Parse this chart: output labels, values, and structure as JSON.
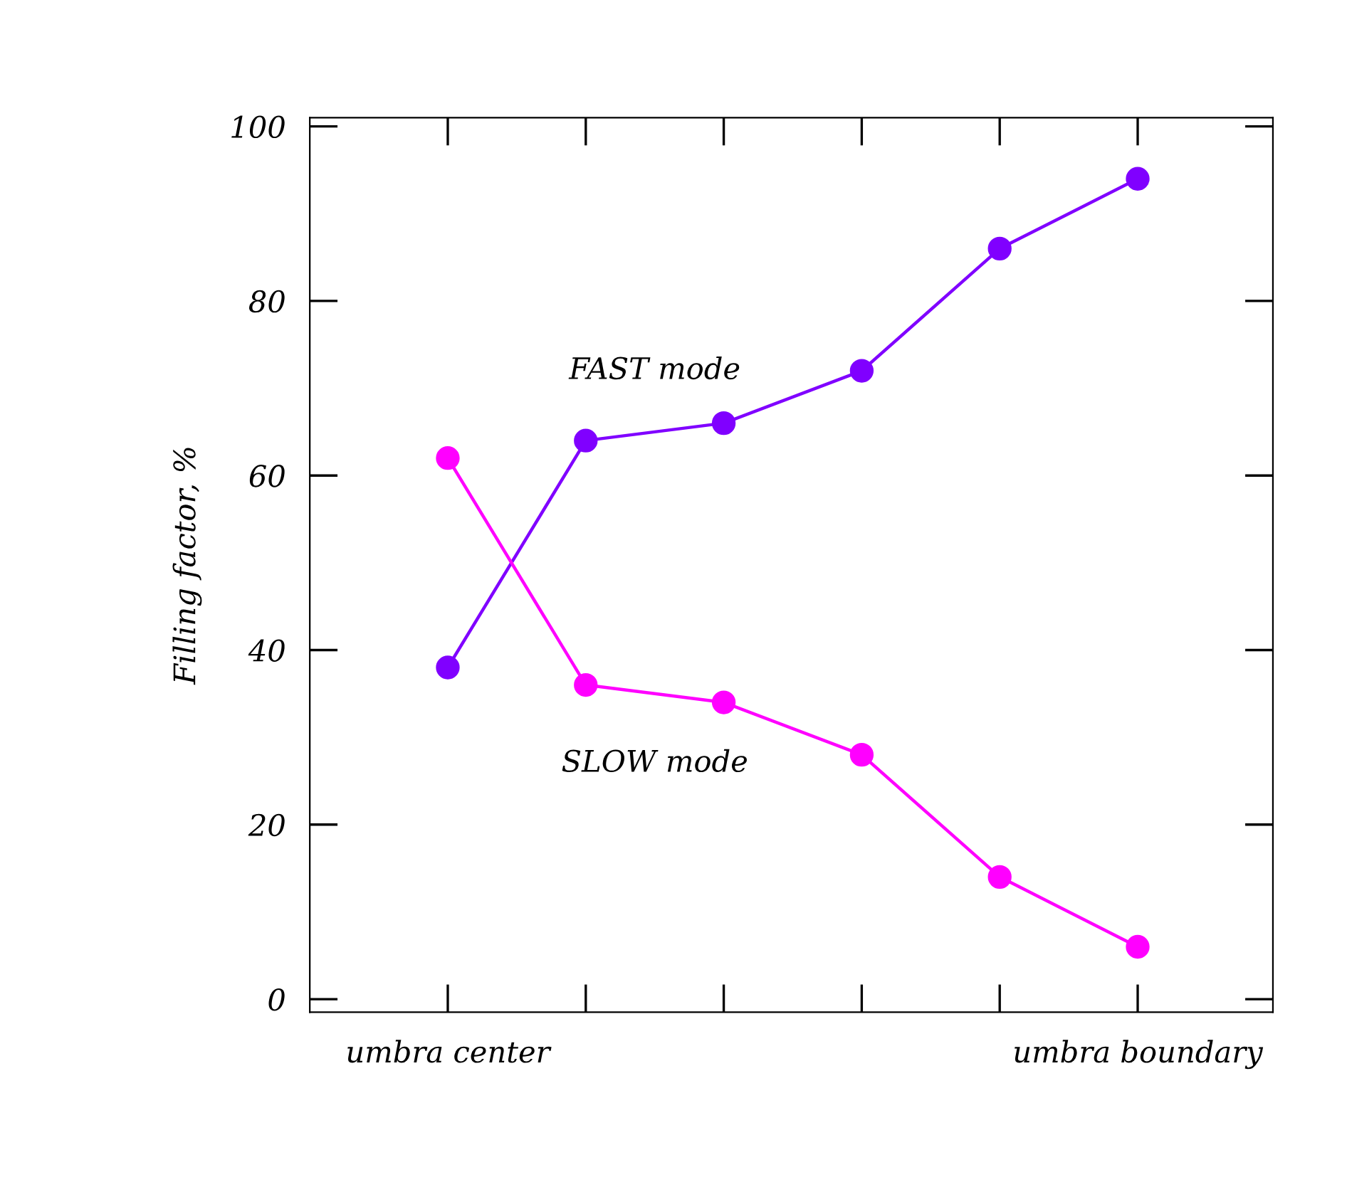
{
  "chart_data": {
    "type": "line",
    "ylabel": "Filling factor, %",
    "categories": [
      "umbra center",
      null,
      null,
      null,
      null,
      "umbra boundary"
    ],
    "series": [
      {
        "name": "FAST mode",
        "color": "#8000ff",
        "values": [
          38,
          64,
          66,
          72,
          86,
          94
        ]
      },
      {
        "name": "SLOW mode",
        "color": "#ff00ff",
        "values": [
          62,
          36,
          34,
          28,
          14,
          6
        ]
      }
    ],
    "ylim": [
      -1.5,
      101
    ],
    "yticks": [
      0,
      20,
      40,
      60,
      80,
      100
    ],
    "grid": false,
    "legend": false,
    "marker": "circle",
    "line_style": "solid"
  }
}
